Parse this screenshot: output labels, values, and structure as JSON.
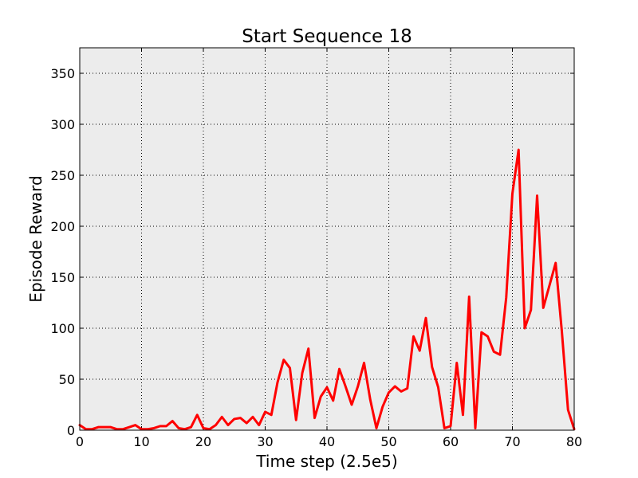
{
  "chart_data": {
    "type": "line",
    "title": "Start Sequence 18",
    "xlabel": "Time step (2.5e5)",
    "ylabel": "Episode Reward",
    "xlim": [
      0,
      80
    ],
    "ylim": [
      0,
      375
    ],
    "xticks": [
      0,
      10,
      20,
      30,
      40,
      50,
      60,
      70,
      80
    ],
    "yticks": [
      0,
      50,
      100,
      150,
      200,
      250,
      300,
      350
    ],
    "grid": true,
    "plot_background": "#ececec",
    "series": [
      {
        "color": "#ff0000",
        "x": [
          0,
          1,
          2,
          3,
          4,
          5,
          6,
          7,
          8,
          9,
          10,
          11,
          12,
          13,
          14,
          15,
          16,
          17,
          18,
          19,
          20,
          21,
          22,
          23,
          24,
          25,
          26,
          27,
          28,
          29,
          30,
          31,
          32,
          33,
          34,
          35,
          36,
          37,
          38,
          39,
          40,
          41,
          42,
          43,
          44,
          45,
          46,
          47,
          48,
          49,
          50,
          51,
          52,
          53,
          54,
          55,
          56,
          57,
          58,
          59,
          60,
          61,
          62,
          63,
          64,
          65,
          66,
          67,
          68,
          69,
          70,
          71,
          72,
          73,
          74,
          75,
          76,
          77,
          78,
          79,
          80
        ],
        "y": [
          5,
          1,
          1,
          3,
          3,
          3,
          1,
          1,
          3,
          5,
          1,
          1,
          2,
          4,
          4,
          9,
          2,
          1,
          3,
          15,
          2,
          1,
          5,
          13,
          5,
          11,
          12,
          7,
          13,
          5,
          18,
          15,
          47,
          69,
          61,
          10,
          56,
          80,
          12,
          33,
          42,
          29,
          60,
          43,
          25,
          43,
          66,
          30,
          2,
          23,
          37,
          43,
          38,
          41,
          92,
          78,
          110,
          62,
          42,
          2,
          4,
          66,
          15,
          131,
          2,
          96,
          92,
          77,
          74,
          130,
          232,
          275,
          100,
          118,
          230,
          120,
          142,
          164,
          97,
          20,
          1
        ]
      }
    ]
  }
}
